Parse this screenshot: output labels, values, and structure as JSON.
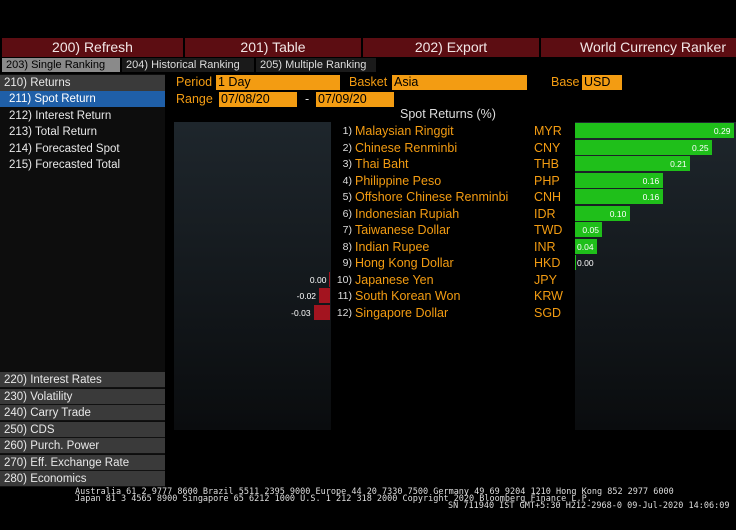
{
  "toolbar": {
    "buttons": [
      "200) Refresh",
      "201) Table",
      "202) Export"
    ],
    "app_title": "World Currency Ranker"
  },
  "tabs": [
    "203) Single Ranking",
    "204) Historical Ranking",
    "205) Multiple Ranking"
  ],
  "sidebar": {
    "header": "210) Returns",
    "items": [
      "211) Spot Return",
      "212) Interest Return",
      "213) Total Return",
      "214) Forecasted Spot",
      "215) Forecasted Total"
    ],
    "sections": [
      "220) Interest Rates",
      "230) Volatility",
      "240) Carry Trade",
      "250) CDS",
      "260) Purch. Power",
      "270) Eff. Exchange Rate",
      "280) Economics"
    ]
  },
  "controls": {
    "period_label": "Period",
    "period": "1 Day",
    "basket_label": "Basket",
    "basket": "Asia",
    "base_label": "Base",
    "base": "USD",
    "range_label": "Range",
    "range_start": "07/08/20",
    "range_sep": "-",
    "range_end": "07/09/20"
  },
  "ranking": {
    "title": "Spot Returns (%)",
    "rows": [
      {
        "rank": "1)",
        "name": "Malaysian Ringgit",
        "code": "MYR",
        "value": 0.29,
        "value_label": "0.29"
      },
      {
        "rank": "2)",
        "name": "Chinese Renminbi",
        "code": "CNY",
        "value": 0.25,
        "value_label": "0.25"
      },
      {
        "rank": "3)",
        "name": "Thai Baht",
        "code": "THB",
        "value": 0.21,
        "value_label": "0.21"
      },
      {
        "rank": "4)",
        "name": "Philippine Peso",
        "code": "PHP",
        "value": 0.16,
        "value_label": "0.16"
      },
      {
        "rank": "5)",
        "name": "Offshore Chinese Renminbi",
        "code": "CNH",
        "value": 0.16,
        "value_label": "0.16"
      },
      {
        "rank": "6)",
        "name": "Indonesian Rupiah",
        "code": "IDR",
        "value": 0.1,
        "value_label": "0.10"
      },
      {
        "rank": "7)",
        "name": "Taiwanese Dollar",
        "code": "TWD",
        "value": 0.05,
        "value_label": "0.05"
      },
      {
        "rank": "8)",
        "name": "Indian Rupee",
        "code": "INR",
        "value": 0.04,
        "value_label": "0.04"
      },
      {
        "rank": "9)",
        "name": "Hong Kong Dollar",
        "code": "HKD",
        "value": 0.001,
        "value_label": "0.00"
      },
      {
        "rank": "10)",
        "name": "Japanese Yen",
        "code": "JPY",
        "value": -0.001,
        "value_label": "0.00"
      },
      {
        "rank": "11)",
        "name": "South Korean Won",
        "code": "KRW",
        "value": -0.02,
        "value_label": "-0.02"
      },
      {
        "rank": "12)",
        "name": "Singapore Dollar",
        "code": "SGD",
        "value": -0.03,
        "value_label": "-0.03"
      }
    ]
  },
  "footer": [
    "Australia 61 2 9777 8600 Brazil 5511 2395 9000 Europe 44 20 7330 7500 Germany 49 69 9204 1210 Hong Kong 852 2977 6000",
    "Japan 81 3 4565 8900 Singapore 65 6212 1000 U.S. 1 212 318 2000 Copyright 2020 Bloomberg Finance L.P.",
    "SN 711940 IST GMT+5:30 H212-2968-0 09-Jul-2020 14:06:09"
  ]
}
